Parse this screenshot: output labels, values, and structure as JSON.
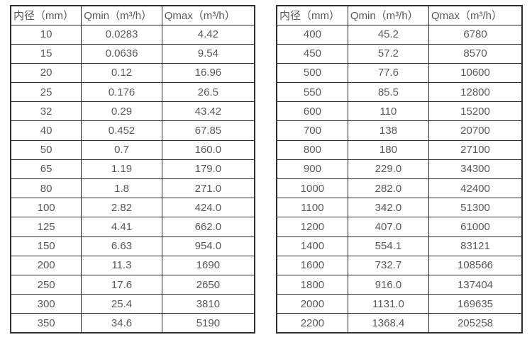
{
  "colors": {
    "border": "#2e2e2e",
    "text": "#595959",
    "background": "#ffffff"
  },
  "tables": [
    {
      "name": "flow-spec-small-diameters",
      "headers": [
        "内径（mm）",
        "Qmin（m³/h）",
        "Qmax（m³/h）"
      ],
      "rows": [
        [
          "10",
          "0.0283",
          "4.42"
        ],
        [
          "15",
          "0.0636",
          "9.54"
        ],
        [
          "20",
          "0.12",
          "16.96"
        ],
        [
          "25",
          "0.176",
          "26.5"
        ],
        [
          "32",
          "0.29",
          "43.42"
        ],
        [
          "40",
          "0.452",
          "67.85"
        ],
        [
          "50",
          "0.7",
          "160.0"
        ],
        [
          "65",
          "1.19",
          "179.0"
        ],
        [
          "80",
          "1.8",
          "271.0"
        ],
        [
          "100",
          "2.82",
          "424.0"
        ],
        [
          "125",
          "4.41",
          "662.0"
        ],
        [
          "150",
          "6.63",
          "954.0"
        ],
        [
          "200",
          "11.3",
          "1690"
        ],
        [
          "250",
          "17.6",
          "2650"
        ],
        [
          "300",
          "25.4",
          "3810"
        ],
        [
          "350",
          "34.6",
          "5190"
        ]
      ]
    },
    {
      "name": "flow-spec-large-diameters",
      "headers": [
        "内径（mm）",
        "Qmin（m³/h）",
        "Qmax（m³/h）"
      ],
      "rows": [
        [
          "400",
          "45.2",
          "6780"
        ],
        [
          "450",
          "57.2",
          "8570"
        ],
        [
          "500",
          "77.6",
          "10600"
        ],
        [
          "550",
          "85.5",
          "12800"
        ],
        [
          "600",
          "110",
          "15200"
        ],
        [
          "700",
          "138",
          "20700"
        ],
        [
          "800",
          "180",
          "27100"
        ],
        [
          "900",
          "229.0",
          "34300"
        ],
        [
          "1000",
          "282.0",
          "42400"
        ],
        [
          "1100",
          "342.0",
          "51300"
        ],
        [
          "1200",
          "407.0",
          "61000"
        ],
        [
          "1400",
          "554.1",
          "83121"
        ],
        [
          "1600",
          "732.7",
          "108566"
        ],
        [
          "1800",
          "916.0",
          "137404"
        ],
        [
          "2000",
          "1131.0",
          "169635"
        ],
        [
          "2200",
          "1368.4",
          "205258"
        ]
      ]
    }
  ]
}
